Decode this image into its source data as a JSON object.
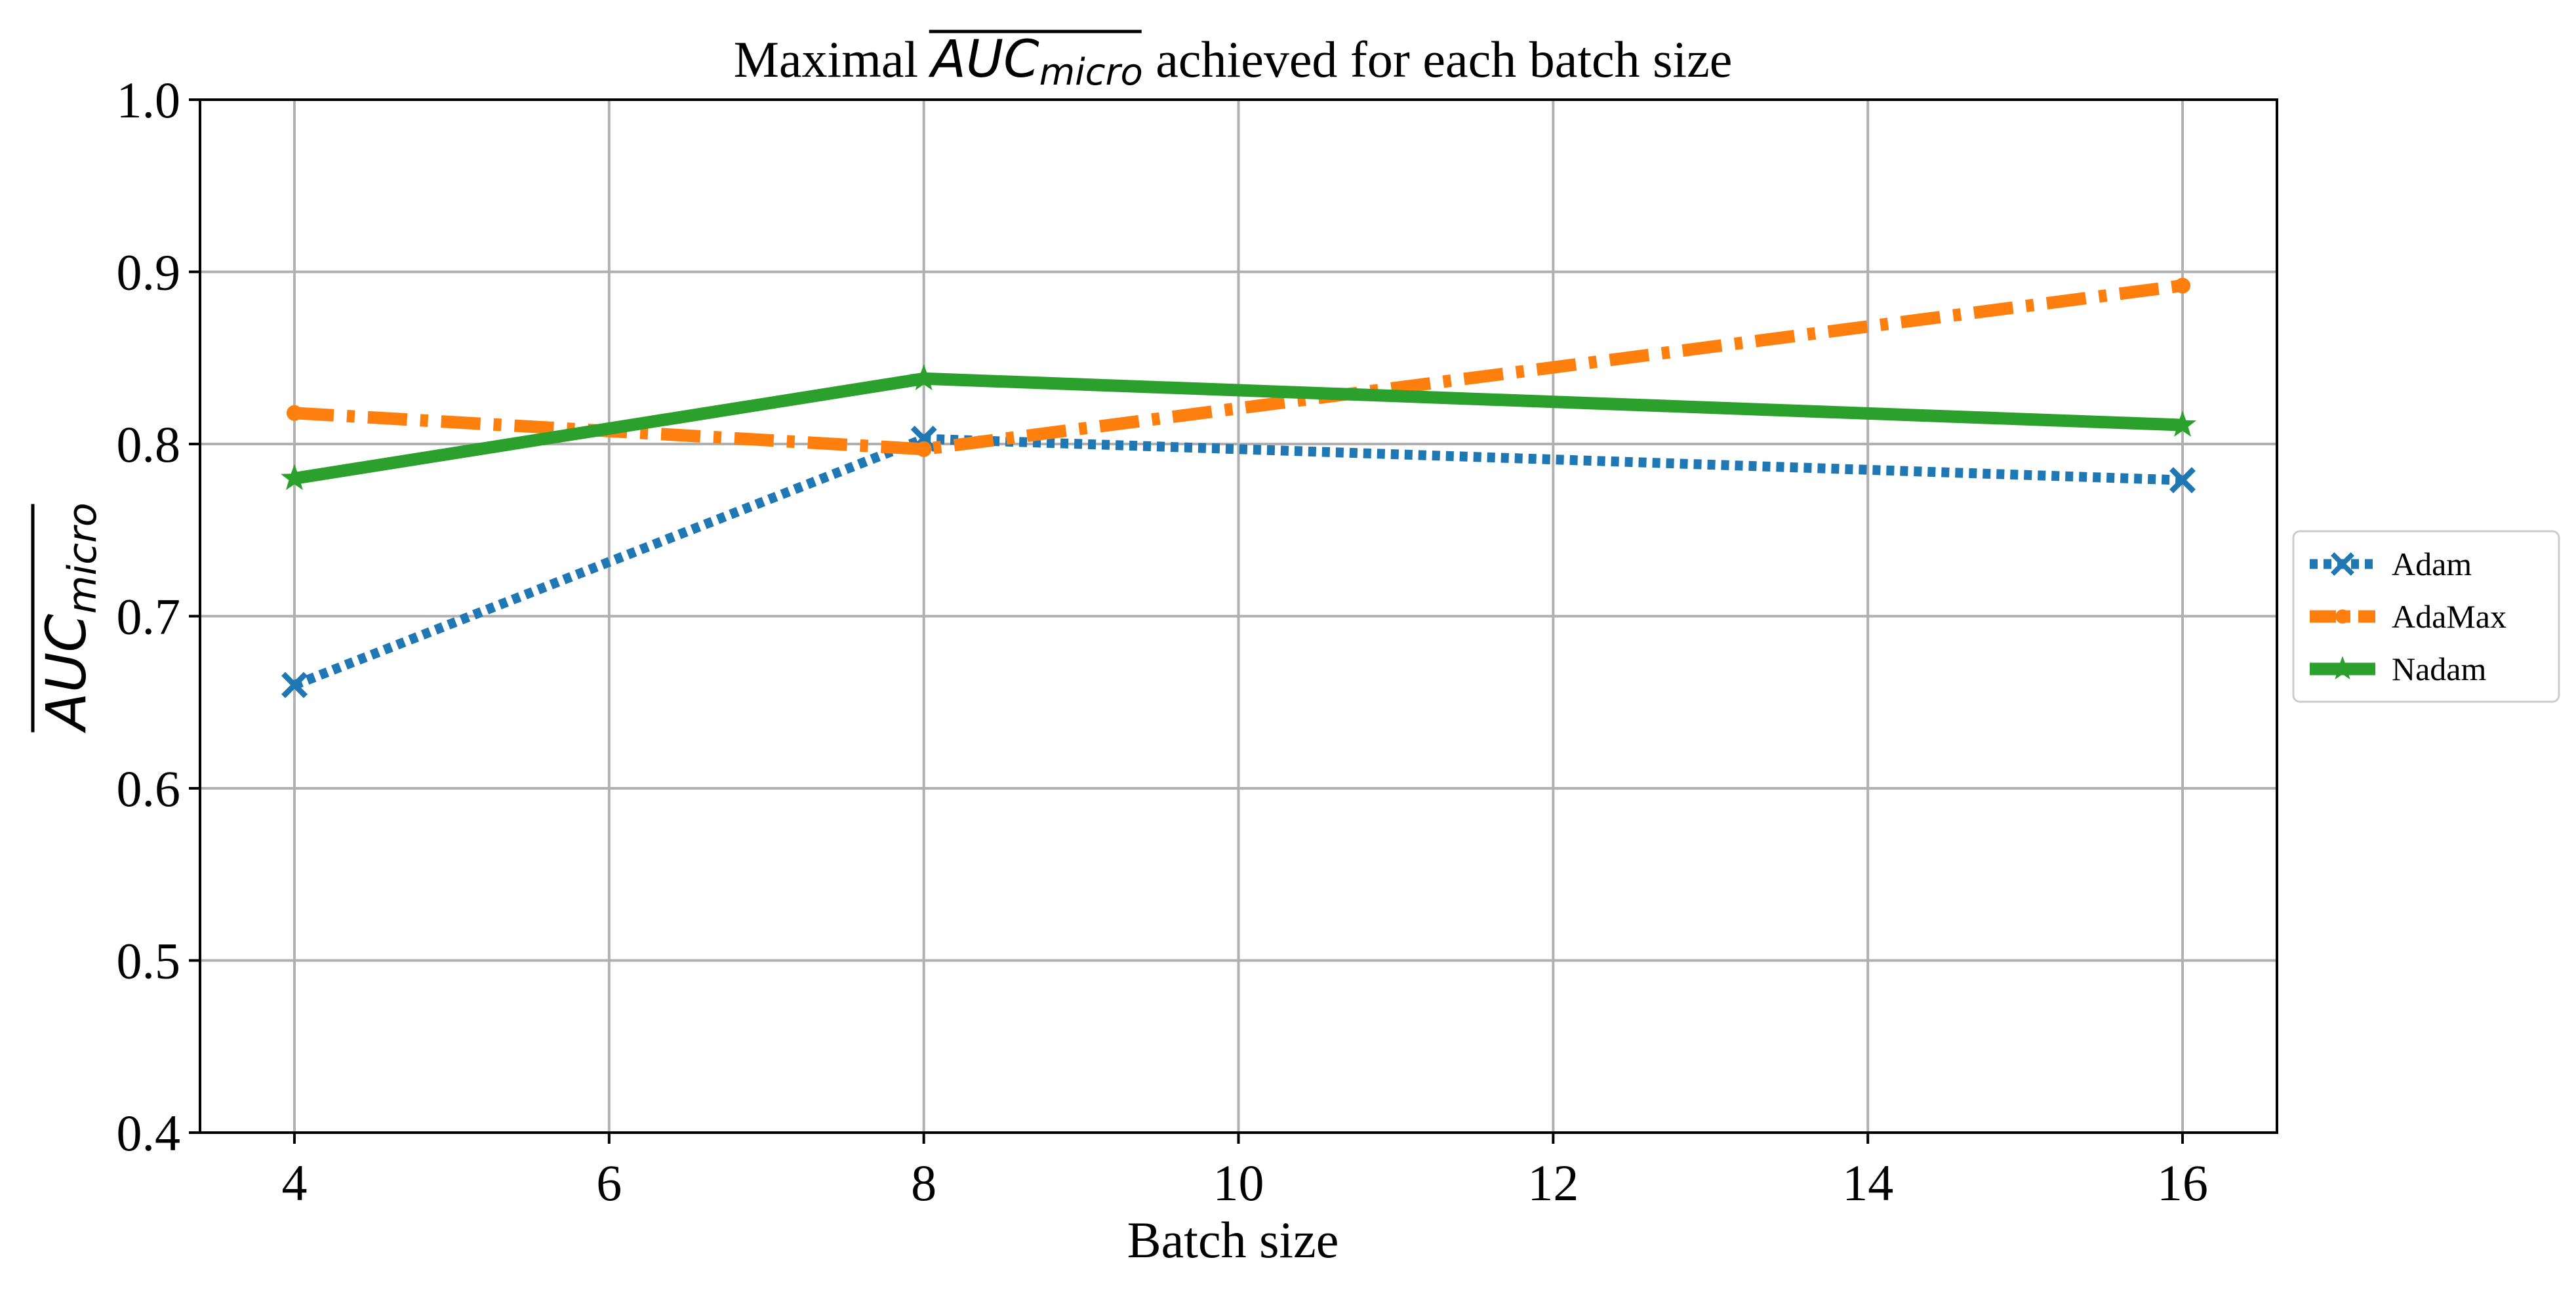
{
  "chart_data": {
    "type": "line",
    "title": {
      "prefix": "Maximal ",
      "metric_main": "AUC",
      "metric_sub": "micro",
      "suffix": " achieved for each batch size"
    },
    "xlabel": "Batch size",
    "ylabel": {
      "main": "AUC",
      "sub": "micro"
    },
    "xlim": [
      3.4,
      16.6
    ],
    "ylim": [
      0.4,
      1.0
    ],
    "xticks": [
      4,
      6,
      8,
      10,
      12,
      14,
      16
    ],
    "xtick_labels": [
      "4",
      "6",
      "8",
      "10",
      "12",
      "14",
      "16"
    ],
    "yticks": [
      0.4,
      0.5,
      0.6,
      0.7,
      0.8,
      0.9,
      1.0
    ],
    "ytick_labels": [
      "0.4",
      "0.5",
      "0.6",
      "0.7",
      "0.8",
      "0.9",
      "1.0"
    ],
    "grid": true,
    "legend_position": "center-right-outside",
    "x": [
      4,
      8,
      16
    ],
    "series": [
      {
        "name": "Adam",
        "values": [
          0.66,
          0.803,
          0.779
        ],
        "color": "#1f77b4",
        "line_style": "dotted",
        "marker": "x-filled"
      },
      {
        "name": "AdaMax",
        "values": [
          0.818,
          0.797,
          0.892
        ],
        "color": "#ff7f0e",
        "line_style": "dashdot",
        "marker": "circle"
      },
      {
        "name": "Nadam",
        "values": [
          0.78,
          0.838,
          0.811
        ],
        "color": "#2ca02c",
        "line_style": "solid",
        "marker": "star"
      }
    ]
  }
}
